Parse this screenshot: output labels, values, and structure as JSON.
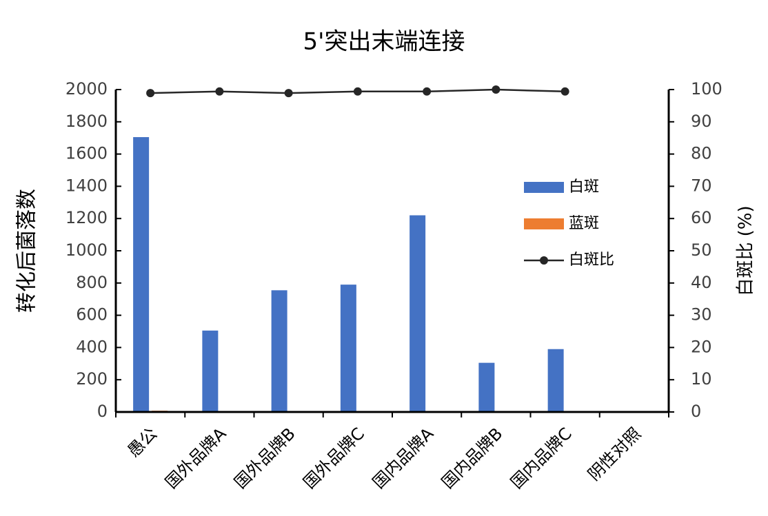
{
  "chart_data": {
    "type": "bar",
    "title": "5'突出末端连接",
    "y_label": "转化后菌落数",
    "y2_label": "白斑比 (%)",
    "categories": [
      "愚公",
      "国外品牌A",
      "国外品牌B",
      "国外品牌C",
      "国内品牌A",
      "国内品牌B",
      "国内品牌C",
      "阴性对照"
    ],
    "series": [
      {
        "name": "白斑",
        "color": "#4472c4",
        "type": "bar",
        "values": [
          1705,
          505,
          755,
          790,
          1220,
          305,
          390,
          0
        ]
      },
      {
        "name": "蓝斑",
        "color": "#ed7d31",
        "type": "bar",
        "values": [
          8,
          0,
          0,
          0,
          0,
          0,
          0,
          6
        ]
      },
      {
        "name": "白斑比",
        "color": "#262626",
        "type": "line",
        "axis": "y2",
        "values": [
          98.9,
          99.4,
          98.9,
          99.4,
          99.4,
          100,
          99.4,
          null
        ]
      }
    ],
    "ylim": [
      0,
      2000
    ],
    "yticks": [
      0,
      200,
      400,
      600,
      800,
      1000,
      1200,
      1400,
      1600,
      1800,
      2000
    ],
    "y2lim": [
      0,
      100
    ],
    "y2ticks": [
      0,
      10,
      20,
      30,
      40,
      50,
      60,
      70,
      80,
      90,
      100
    ],
    "legend": "right"
  }
}
